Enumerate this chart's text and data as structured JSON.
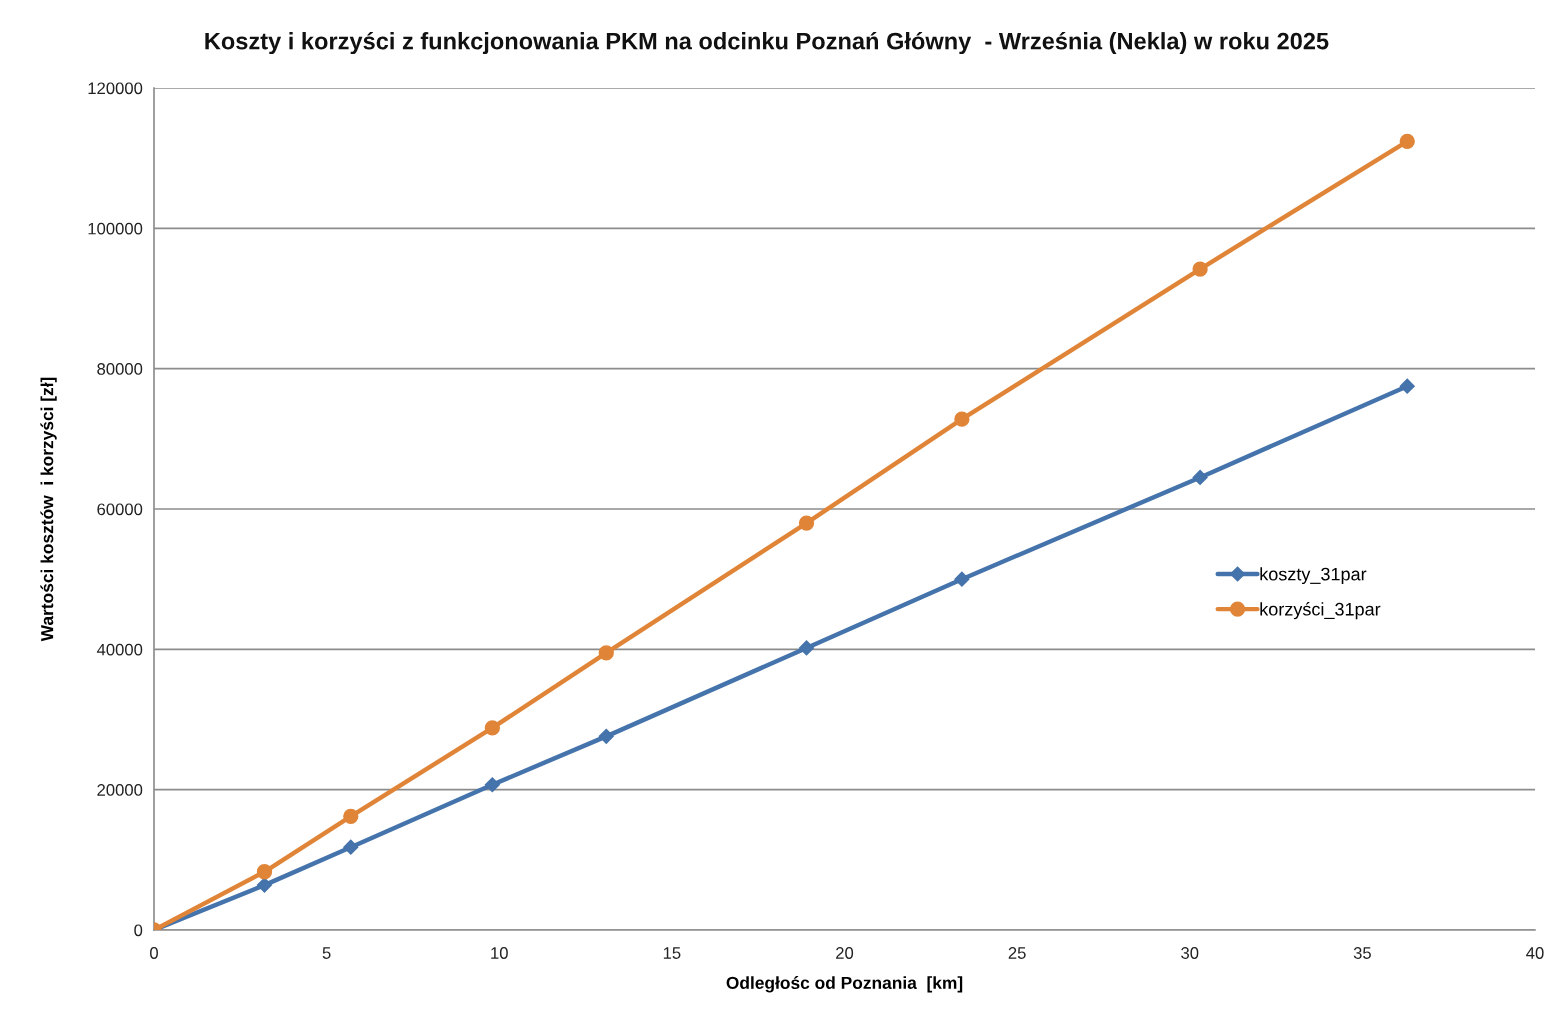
{
  "chart_data": {
    "type": "line",
    "title": "Koszty i korzyści z funkcjonowania PKM na odcinku Poznań Główny  - Września (Nekla) w roku 2025",
    "xlabel": "Odległośc od Poznania  [km]",
    "ylabel": "Wartości kosztów  i korzyści [zł]",
    "x": [
      0,
      3.2,
      5.7,
      9.8,
      13.1,
      18.9,
      23.4,
      30.3,
      36.3
    ],
    "series": [
      {
        "name": "koszty_31par",
        "color": "#4573ab",
        "marker": "diamond",
        "values": [
          0,
          6400,
          11800,
          20700,
          27600,
          40200,
          50000,
          64500,
          77500
        ]
      },
      {
        "name": "korzyści_31par",
        "color": "#e08538",
        "marker": "circle",
        "values": [
          0,
          8300,
          16200,
          28800,
          39500,
          58000,
          72800,
          94200,
          112400
        ]
      }
    ],
    "xlim": [
      0,
      40
    ],
    "xticks": [
      0,
      5,
      10,
      15,
      20,
      25,
      30,
      35,
      40
    ],
    "ylim": [
      0,
      120000
    ],
    "yticks": [
      0,
      20000,
      40000,
      60000,
      80000,
      100000,
      120000
    ],
    "grid": "y",
    "legend": "right",
    "line_style": "solid"
  }
}
